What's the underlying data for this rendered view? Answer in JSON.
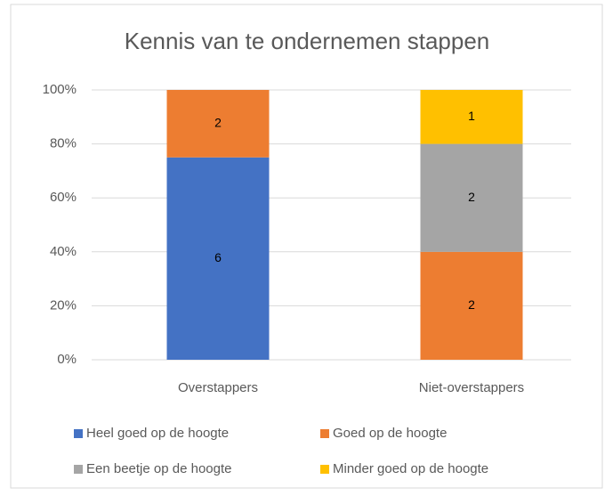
{
  "chart_data": {
    "type": "bar",
    "stacked": "percent",
    "title": "Kennis van te ondernemen stappen",
    "categories": [
      "Overstappers",
      "Niet-overstappers"
    ],
    "series": [
      {
        "name": "Heel goed op de hoogte",
        "color": "#4472c4",
        "values": [
          6,
          0
        ]
      },
      {
        "name": "Goed op de hoogte",
        "color": "#ed7d31",
        "values": [
          2,
          2
        ]
      },
      {
        "name": "Een beetje op de hoogte",
        "color": "#a5a5a5",
        "values": [
          0,
          2
        ]
      },
      {
        "name": "Minder goed op de hoogte",
        "color": "#ffc000",
        "values": [
          0,
          1
        ]
      }
    ],
    "ylim": [
      0,
      100
    ],
    "yticks": [
      {
        "value": 0,
        "label": "0%"
      },
      {
        "value": 20,
        "label": "20%"
      },
      {
        "value": 40,
        "label": "40%"
      },
      {
        "value": 60,
        "label": "60%"
      },
      {
        "value": 80,
        "label": "80%"
      },
      {
        "value": 100,
        "label": "100%"
      }
    ],
    "grid": true,
    "legend": "bottom"
  }
}
